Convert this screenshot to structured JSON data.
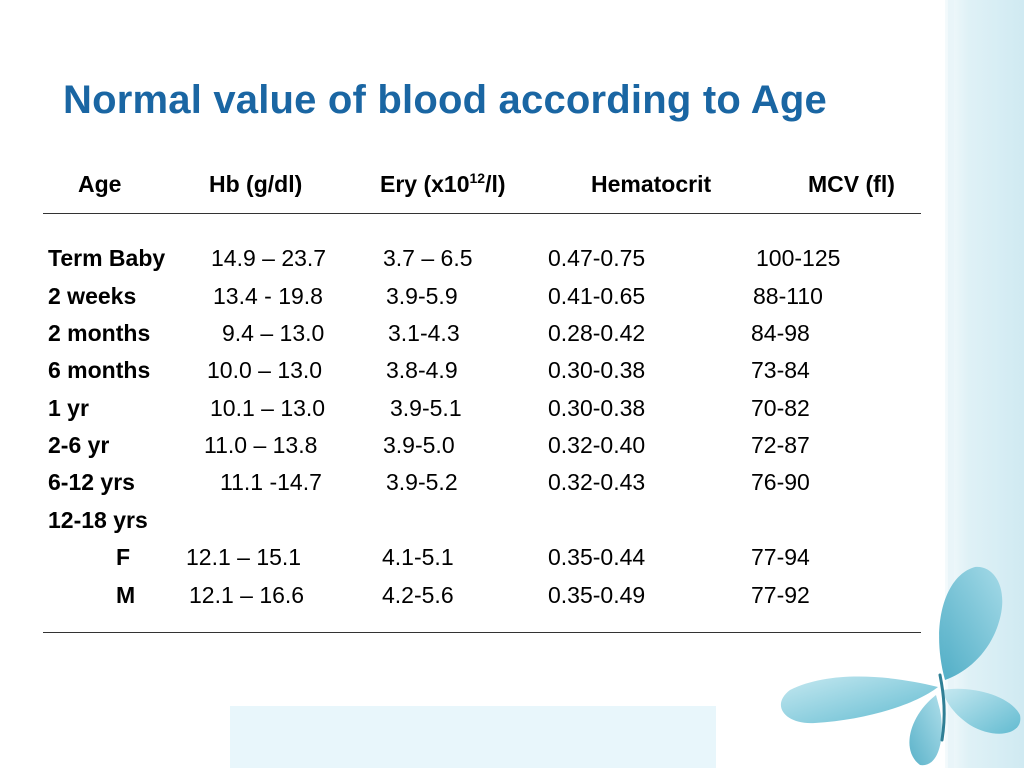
{
  "slide": {
    "title": "Normal value of blood according to Age"
  },
  "table": {
    "headers": {
      "age": "Age",
      "hb": "Hb (g/dl)",
      "ery_prefix": "Ery (x10",
      "ery_sup": "12",
      "ery_suffix": "/l)",
      "hematocrit": "Hematocrit",
      "mcv": "MCV (fl)"
    },
    "rows": [
      {
        "age": "Term Baby",
        "hb": "14.9 – 23.7",
        "ery": "3.7 – 6.5",
        "hct": "0.47-0.75",
        "mcv": "100-125"
      },
      {
        "age": "2 weeks",
        "hb": "13.4 - 19.8",
        "ery": "3.9-5.9",
        "hct": "0.41-0.65",
        "mcv": "88-110"
      },
      {
        "age": "2 months",
        "hb": "9.4 – 13.0",
        "ery": "3.1-4.3",
        "hct": "0.28-0.42",
        "mcv": "84-98"
      },
      {
        "age": "6 months",
        "hb": "10.0 – 13.0",
        "ery": "3.8-4.9",
        "hct": "0.30-0.38",
        "mcv": "73-84"
      },
      {
        "age": "1 yr",
        "hb": "10.1 – 13.0",
        "ery": "3.9-5.1",
        "hct": "0.30-0.38",
        "mcv": "70-82"
      },
      {
        "age": "2-6 yr",
        "hb": "11.0 – 13.8",
        "ery": "3.9-5.0",
        "hct": "0.32-0.40",
        "mcv": "72-87"
      },
      {
        "age": "6-12 yrs",
        "hb": "11.1 -14.7",
        "ery": "3.9-5.2",
        "hct": "0.32-0.43",
        "mcv": "76-90"
      },
      {
        "age": "12-18 yrs",
        "hb": "",
        "ery": "",
        "hct": "",
        "mcv": ""
      },
      {
        "age": "F",
        "hb": "12.1 – 15.1",
        "ery": "4.1-5.1",
        "hct": "0.35-0.44",
        "mcv": "77-94"
      },
      {
        "age": "M",
        "hb": "12.1 – 16.6",
        "ery": "4.2-5.6",
        "hct": "0.35-0.49",
        "mcv": "77-92"
      }
    ]
  },
  "decor": {
    "butterfly_icon": "butterfly-icon",
    "butterfly_color": "#6fc3d6"
  }
}
